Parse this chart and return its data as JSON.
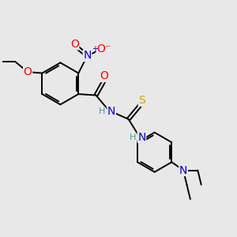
{
  "bg_color": "#e8e8e8",
  "bond_color": "#000000",
  "bond_width": 1.4,
  "atom_colors": {
    "O": "#ff0000",
    "N": "#0000cd",
    "S": "#ccaa00",
    "C": "#000000",
    "H": "#4a9a9a"
  },
  "font_size": 9,
  "fig_size": [
    3.0,
    3.0
  ],
  "dpi": 100
}
